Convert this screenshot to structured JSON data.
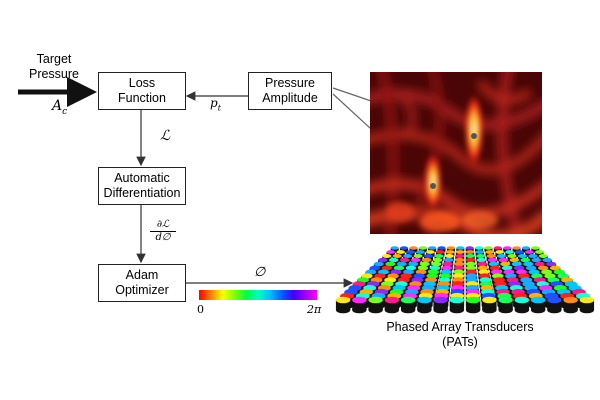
{
  "target": {
    "line1": "Target",
    "line2": "Pressure",
    "symbol": "A",
    "symbol_sub": "c"
  },
  "boxes": {
    "loss": {
      "line1": "Loss",
      "line2": "Function"
    },
    "pressure": {
      "line1": "Pressure",
      "line2": "Amplitude"
    },
    "autodiff": {
      "line1": "Automatic",
      "line2": "Differentiation"
    },
    "adam": {
      "line1": "Adam",
      "line2": "Optimizer"
    }
  },
  "labels": {
    "pt": "p",
    "pt_sub": "t",
    "loss_symbol": "ℒ",
    "grad_num": "∂ℒ",
    "grad_den": "d∅",
    "phase_symbol": "∅"
  },
  "colorbar": {
    "min_label": "0",
    "max_label": "2π"
  },
  "pats": {
    "line1": "Phased Array Transducers",
    "line2": "(PATs)"
  },
  "colors": {
    "arrow": "#111111",
    "heatmap_bg": "#5a0808",
    "hotspot": "#fff4a0"
  }
}
